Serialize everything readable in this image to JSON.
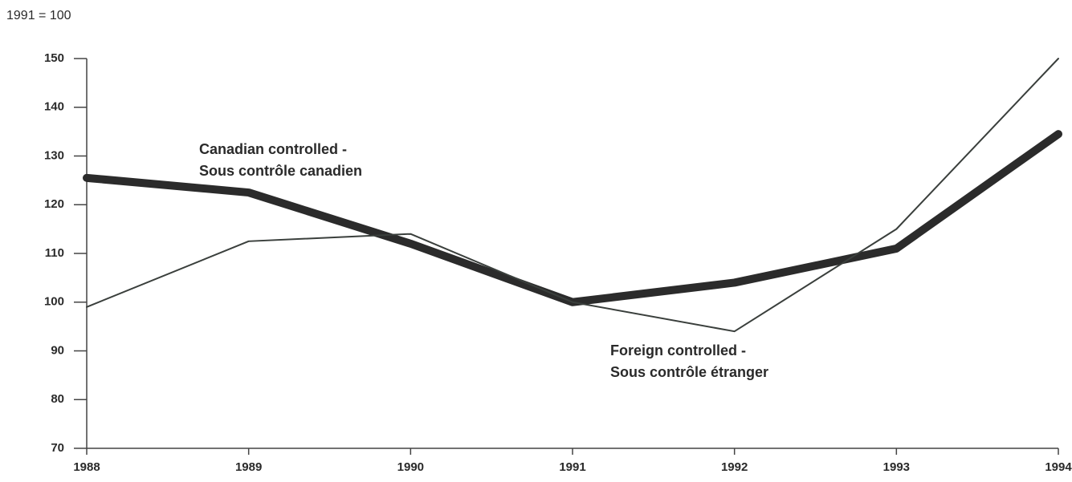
{
  "chart_data": {
    "type": "line",
    "subtitle": "1991 = 100",
    "categories": [
      "1988",
      "1989",
      "1990",
      "1991",
      "1992",
      "1993",
      "1994"
    ],
    "series": [
      {
        "name": "Canadian controlled - Sous contrôle canadien",
        "color": "#2b2b2b",
        "line_width": 10,
        "values": [
          125.5,
          122.5,
          112,
          100,
          104,
          111,
          134.5
        ]
      },
      {
        "name": "Foreign controlled - Sous contrôle étranger",
        "color": "#3a3f3c",
        "line_width": 2,
        "values": [
          99,
          112.5,
          114,
          100,
          94,
          115,
          150
        ]
      }
    ],
    "annotations": [
      [
        "Canadian controlled -",
        "Sous contrôle canadien"
      ],
      [
        "Foreign controlled -",
        "Sous contrôle étranger"
      ]
    ],
    "ylim": [
      70,
      150
    ],
    "yticks": [
      70,
      80,
      90,
      100,
      110,
      120,
      130,
      140,
      150
    ],
    "grid": false
  }
}
